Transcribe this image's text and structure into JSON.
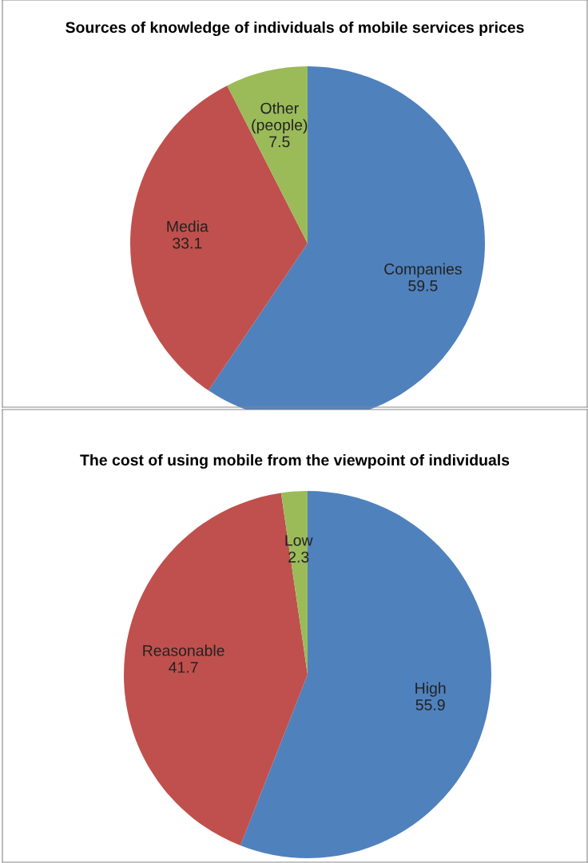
{
  "chart_data": [
    {
      "type": "pie",
      "title": "Sources of knowledge of individuals of mobile services prices",
      "categories": [
        "Companies",
        "Media",
        "Other (people)"
      ],
      "values": [
        59.5,
        33.1,
        7.5
      ],
      "colors": [
        "#4f81bd",
        "#c0504d",
        "#9bbb59"
      ],
      "data_labels": true
    },
    {
      "type": "pie",
      "title": "The cost of using mobile from the viewpoint of individuals",
      "categories": [
        "High",
        "Reasonable",
        "Low"
      ],
      "values": [
        55.9,
        41.7,
        2.3
      ],
      "colors": [
        "#4f81bd",
        "#c0504d",
        "#9bbb59"
      ],
      "data_labels": true
    }
  ]
}
